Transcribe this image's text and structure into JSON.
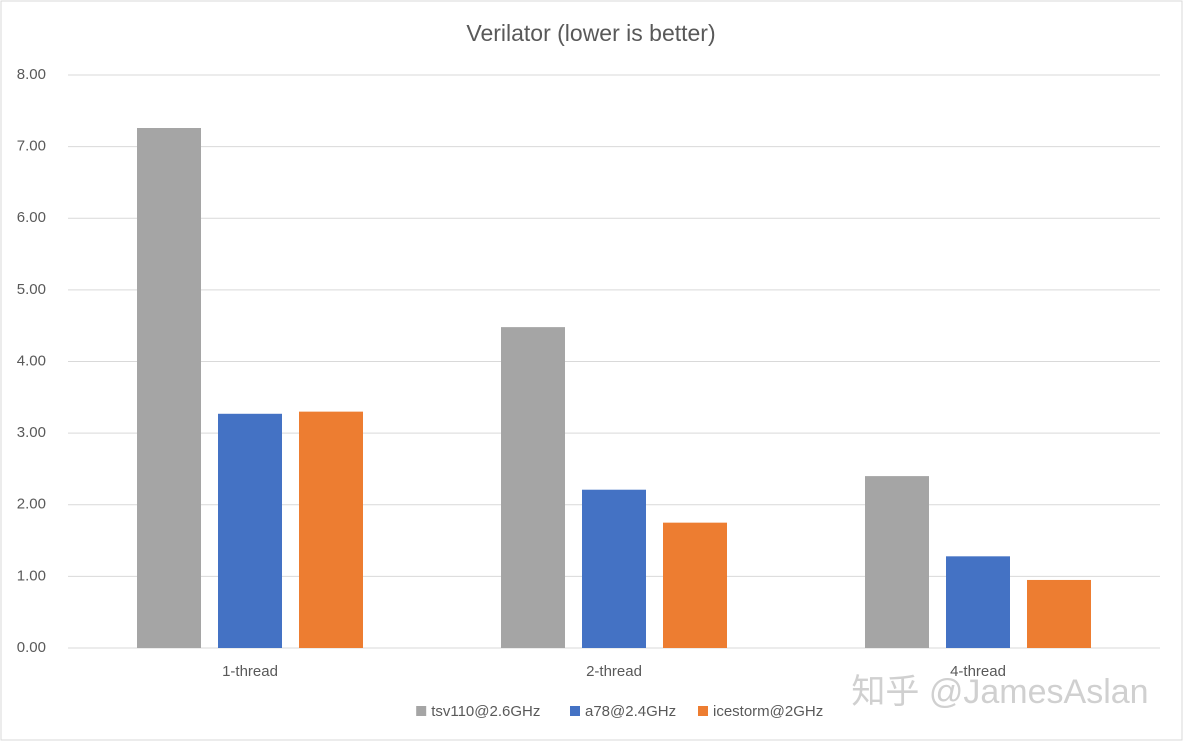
{
  "chart_data": {
    "type": "bar",
    "title": "Verilator (lower is better)",
    "categories": [
      "1-thread",
      "2-thread",
      "4-thread"
    ],
    "series": [
      {
        "name": "tsv110@2.6GHz",
        "color": "#a5a5a5",
        "values": [
          7.26,
          4.48,
          2.4
        ]
      },
      {
        "name": "a78@2.4GHz",
        "color": "#4472c4",
        "values": [
          3.27,
          2.21,
          1.28
        ]
      },
      {
        "name": "icestorm@2GHz",
        "color": "#ed7d31",
        "values": [
          3.3,
          1.75,
          0.95
        ]
      }
    ],
    "ylim": [
      0,
      8
    ],
    "yticks": [
      {
        "value": 0,
        "label": "0.00"
      },
      {
        "value": 1,
        "label": "1.00"
      },
      {
        "value": 2,
        "label": "2.00"
      },
      {
        "value": 3,
        "label": "3.00"
      },
      {
        "value": 4,
        "label": "4.00"
      },
      {
        "value": 5,
        "label": "5.00"
      },
      {
        "value": 6,
        "label": "6.00"
      },
      {
        "value": 7,
        "label": "7.00"
      },
      {
        "value": 8,
        "label": "8.00"
      }
    ],
    "grid": true,
    "legend": "bottom",
    "watermark": "知乎 @JamesAslan"
  }
}
